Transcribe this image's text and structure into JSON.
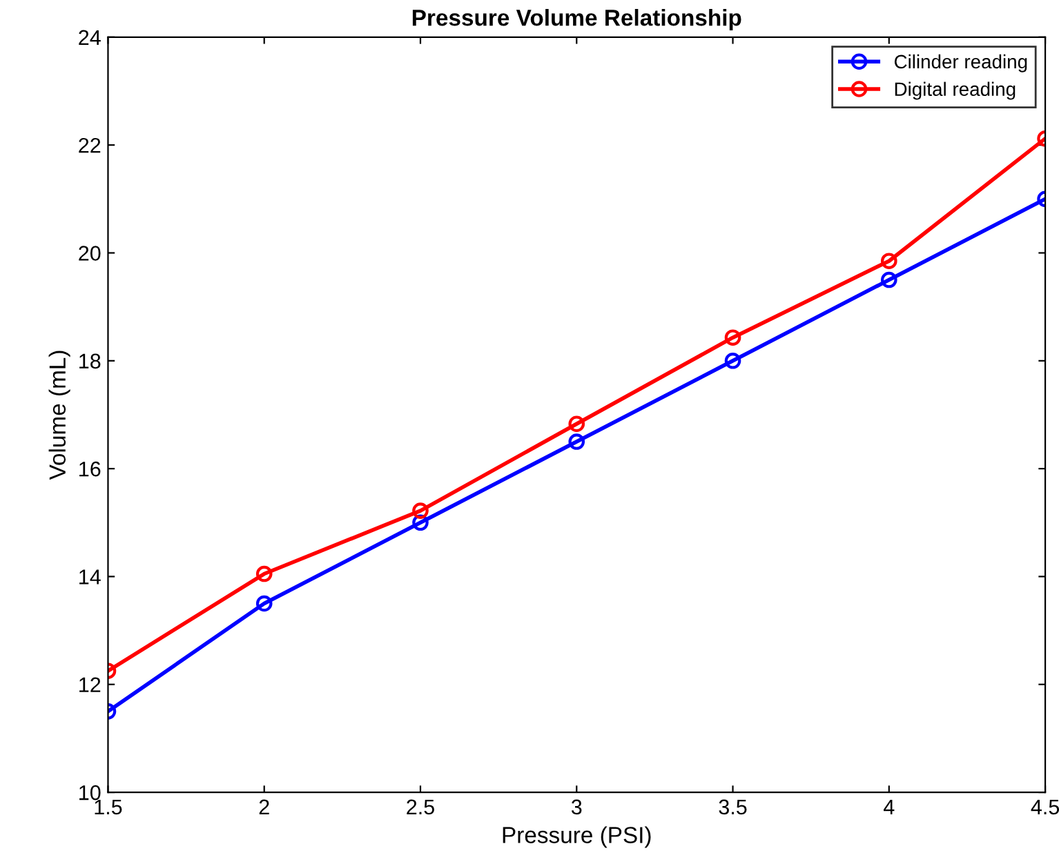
{
  "chart_data": {
    "type": "line",
    "title": "Pressure Volume Relationship",
    "xlabel": "Pressure (PSI)",
    "ylabel": "Volume (mL)",
    "x": [
      1.5,
      2,
      2.5,
      3,
      3.5,
      4,
      4.5
    ],
    "series": [
      {
        "name": "Cilinder reading",
        "color": "#0000ff",
        "values": [
          11.5,
          13.5,
          15,
          16.5,
          18,
          19.5,
          21
        ]
      },
      {
        "name": "Digital reading",
        "color": "#ff0000",
        "values": [
          12.25,
          14.05,
          15.22,
          16.83,
          18.43,
          19.85,
          22.12
        ]
      }
    ],
    "xlim": [
      1.5,
      4.5
    ],
    "xticks": [
      1.5,
      2,
      2.5,
      3,
      3.5,
      4,
      4.5
    ],
    "ylim": [
      10,
      24
    ],
    "yticks": [
      10,
      12,
      14,
      16,
      18,
      20,
      22,
      24
    ],
    "marker": "circle",
    "line_style": "solid",
    "legend": "top right",
    "grid": false
  }
}
